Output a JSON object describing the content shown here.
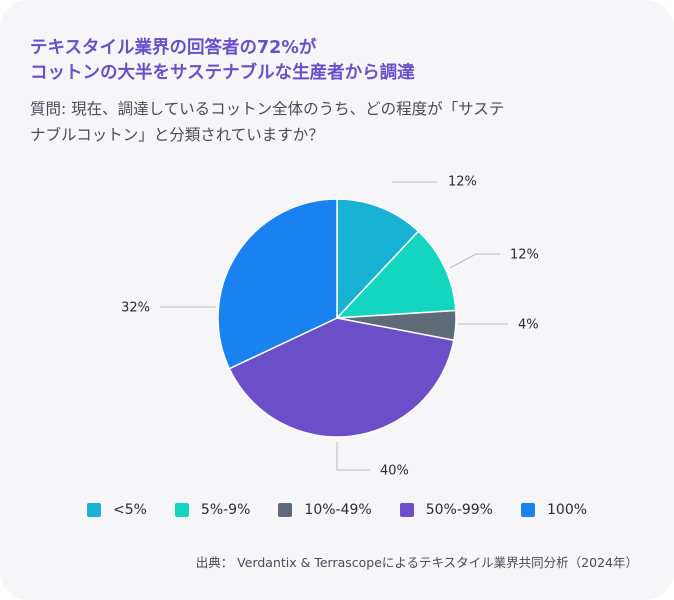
{
  "title_lines": [
    "テキスタイル業界の回答者の72%が",
    "コットンの大半をサステナブルな生産者から調達"
  ],
  "question_lines": [
    "質問: 現在、調達しているコットン全体のうち、どの程度が「サステ",
    "ナブルコットン」と分類されていますか？"
  ],
  "source": "出典： Verdantix & Terrascopeによるテキスタイル業界共同分析（2024年）",
  "chart_data": {
    "type": "pie",
    "categories": [
      "<5%",
      "5%-9%",
      "10%-49%",
      "50%-99%",
      "100%"
    ],
    "values": [
      12,
      12,
      4,
      40,
      32
    ],
    "value_labels": [
      "12%",
      "12%",
      "4%",
      "40%",
      "32%"
    ],
    "colors": [
      "#1ab2d4",
      "#14d6c0",
      "#5f6b78",
      "#6a4fc8",
      "#1a82f0"
    ],
    "start_angle_deg": 0,
    "direction": "clockwise",
    "legend_position": "bottom"
  }
}
